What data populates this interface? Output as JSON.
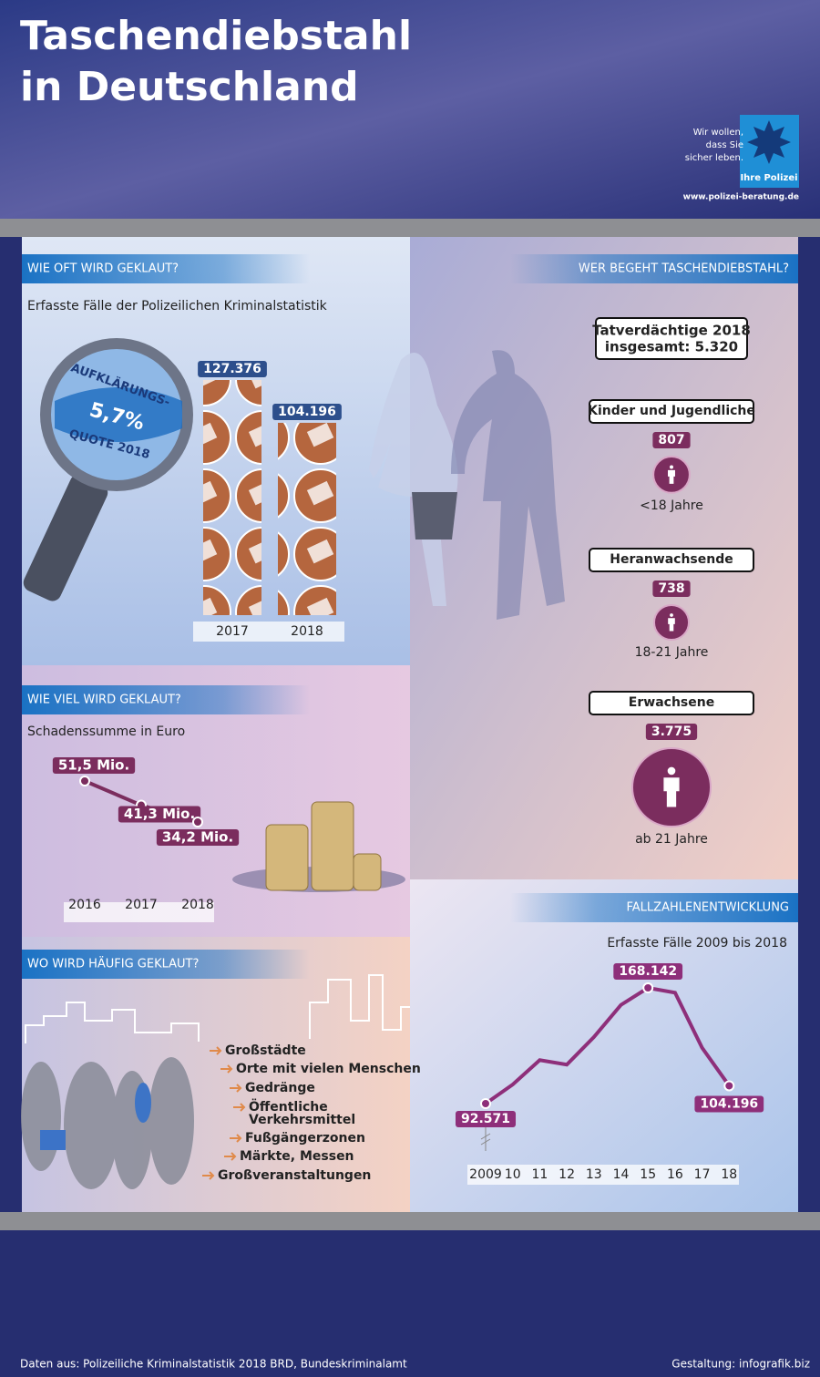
{
  "header": {
    "title_line1": "Taschendiebstahl",
    "title_line2": "in Deutschland",
    "logo_lines": [
      "Wir wollen,",
      "dass Sie",
      "sicher leben."
    ],
    "logo_name": "Ihre Polizei",
    "url": "www.polizei-beratung.de"
  },
  "chart_data": [
    {
      "type": "bar",
      "title": "WIE OFT WIRD GEKLAUT?",
      "subtitle": "Erfasste Fälle der Polizeilichen Kriminalstatistik",
      "categories": [
        "2017",
        "2018"
      ],
      "values": [
        127376,
        104196
      ],
      "value_labels": [
        "127.376",
        "104.196"
      ],
      "color": "#b5663e",
      "annotation": [
        "AUFKLÄRUNGS-",
        "5,7%",
        "QUOTE 2018"
      ]
    },
    {
      "type": "line",
      "title": "WIE VIEL WIRD GEKLAUT?",
      "subtitle": "Schadenssumme in Euro",
      "categories": [
        "2016",
        "2017",
        "2018"
      ],
      "values": [
        51.5,
        41.3,
        34.2
      ],
      "value_labels": [
        "51,5 Mio.",
        "41,3 Mio.",
        "34,2 Mio."
      ],
      "color": "#7b2d5e"
    },
    {
      "type": "pictogram",
      "title": "WER BEGEHT TASCHENDIEBSTAHL?",
      "total": [
        "Tatverdächtige 2018",
        "insgesamt: 5.320"
      ],
      "categories": [
        "Kinder und Jugendliche",
        "Heranwachsende",
        "Erwachsene"
      ],
      "values": [
        807,
        738,
        3775
      ],
      "value_labels": [
        "807",
        "738",
        "3.775"
      ],
      "age_labels": [
        "<18 Jahre",
        "18-21 Jahre",
        "ab 21 Jahre"
      ],
      "color": "#7b2d5e"
    },
    {
      "type": "line",
      "title": "FALLZAHLENENTWICKLUNG",
      "subtitle": "Erfasste Fälle 2009 bis 2018",
      "categories": [
        "2009",
        "10",
        "11",
        "12",
        "13",
        "14",
        "15",
        "16",
        "17",
        "18"
      ],
      "values": [
        92571,
        105000,
        121000,
        118000,
        136000,
        157000,
        168142,
        165000,
        129000,
        104196
      ],
      "value_labels": [
        "92.571",
        null,
        null,
        null,
        null,
        null,
        "168.142",
        null,
        null,
        "104.196"
      ],
      "color": "#8e2f7a"
    }
  ],
  "places": {
    "title": "WO WIRD HÄUFIG GEKLAUT?",
    "items": [
      "Großstädte",
      "Orte mit vielen Menschen",
      "Gedränge",
      "Öffentliche",
      "Verkehrsmittel",
      "Fußgängerzonen",
      "Märkte, Messen",
      "Großveranstaltungen"
    ]
  },
  "footer": {
    "source": "Daten aus: Polizeiliche Kriminalstatistik 2018 BRD, Bundeskriminalamt",
    "credit": "Gestaltung: infografik.biz"
  }
}
